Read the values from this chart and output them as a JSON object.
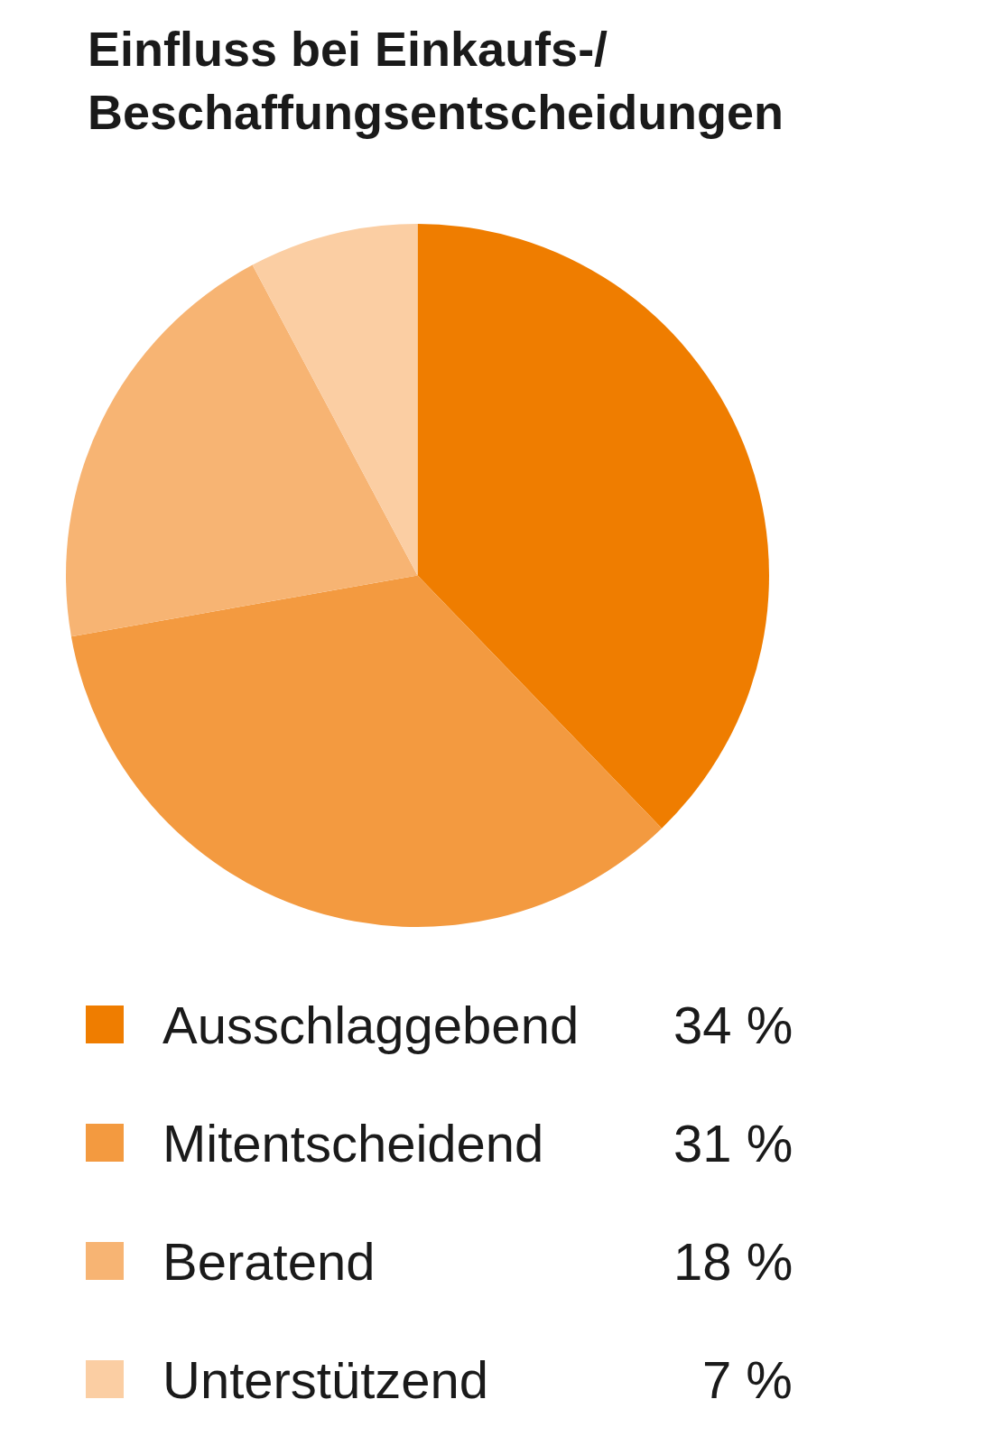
{
  "chart_data": {
    "type": "pie",
    "title": "Einfluss bei Einkaufs-/\nBeschaffungsentscheidungen",
    "categories": [
      "Ausschlaggebend",
      "Mitentscheidend",
      "Beratend",
      "Unterstützend"
    ],
    "values": [
      34,
      31,
      18,
      7
    ],
    "value_labels": [
      "34 %",
      "31 %",
      "18 %",
      "7 %"
    ],
    "colors": [
      "#ef7d00",
      "#f39a40",
      "#f7b473",
      "#fbcea3"
    ],
    "legend": "bottom"
  }
}
